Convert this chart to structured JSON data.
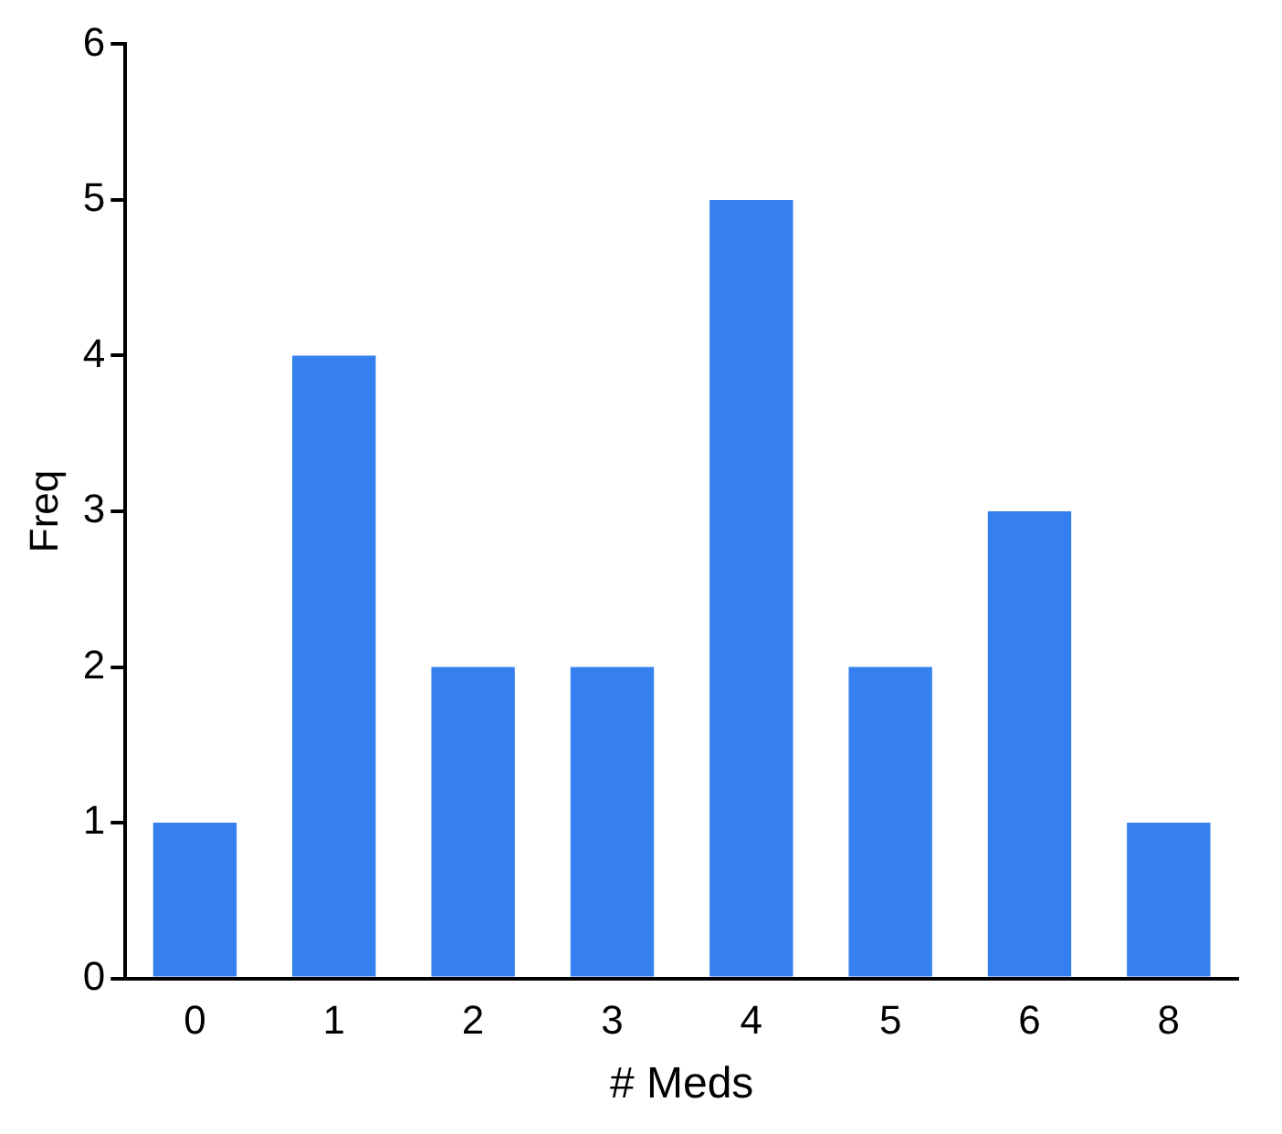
{
  "chart_data": {
    "type": "bar",
    "xlabel": "# Meds",
    "ylabel": "Freq",
    "categories": [
      "0",
      "1",
      "2",
      "3",
      "4",
      "5",
      "6",
      "8"
    ],
    "values": [
      1,
      4,
      2,
      2,
      5,
      2,
      3,
      1
    ],
    "color": "#3580ee",
    "ylim": [
      0,
      6
    ],
    "yticks": [
      0,
      1,
      2,
      3,
      4,
      5,
      6
    ],
    "grid": false,
    "legend": false
  }
}
